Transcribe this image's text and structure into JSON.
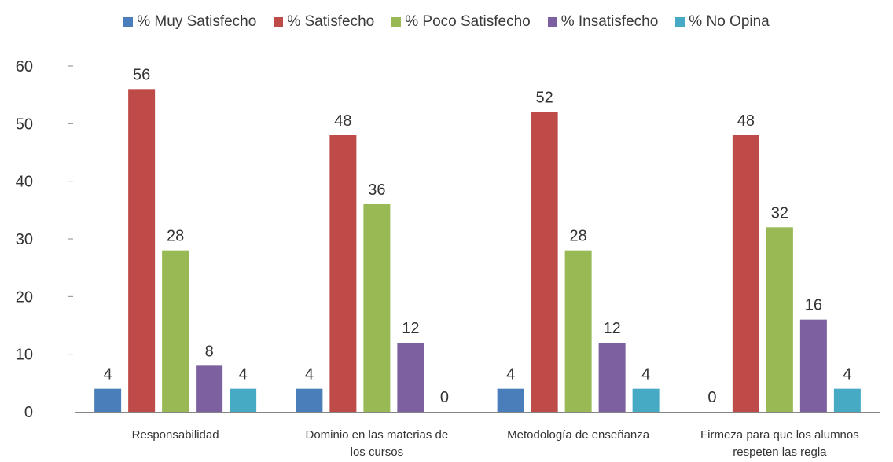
{
  "chart_data": {
    "type": "bar",
    "title": "",
    "xlabel": "",
    "ylabel": "",
    "ylim": [
      0,
      60
    ],
    "yticks": [
      0,
      10,
      20,
      30,
      40,
      50,
      60
    ],
    "grid": false,
    "legend_position": "top",
    "categories": [
      "Responsabilidad",
      "Dominio en las materias de los cursos",
      "Metodología de enseñanza",
      "Firmeza para que los alumnos respeten las regla"
    ],
    "series": [
      {
        "name": "% Muy Satisfecho",
        "color": "#4a7ebb",
        "values": [
          4,
          4,
          4,
          0
        ]
      },
      {
        "name": "% Satisfecho",
        "color": "#be4b48",
        "values": [
          56,
          48,
          52,
          48
        ]
      },
      {
        "name": "% Poco Satisfecho",
        "color": "#98b954",
        "values": [
          28,
          36,
          28,
          32
        ]
      },
      {
        "name": "% Insatisfecho",
        "color": "#7d60a0",
        "values": [
          8,
          12,
          12,
          16
        ]
      },
      {
        "name": "% No Opina",
        "color": "#46aac5",
        "values": [
          4,
          0,
          4,
          4
        ]
      }
    ]
  }
}
